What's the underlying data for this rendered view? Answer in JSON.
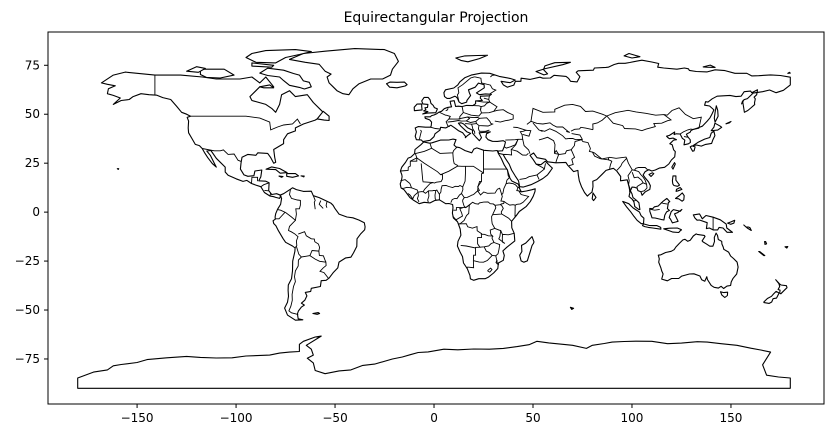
{
  "map": {
    "title": "Equirectangular Projection",
    "projection": "equirectangular",
    "x_range": [
      -195,
      197
    ],
    "y_range": [
      -98,
      92
    ],
    "x_ticks": [
      -150,
      -100,
      -50,
      0,
      50,
      100,
      150
    ],
    "x_tick_labels": [
      "−150",
      "−100",
      "−50",
      "0",
      "50",
      "100",
      "150"
    ],
    "y_ticks": [
      75,
      50,
      25,
      0,
      -25,
      -50,
      -75
    ],
    "y_tick_labels": [
      "75",
      "50",
      "25",
      "0",
      "−25",
      "−50",
      "−75"
    ],
    "grid": false,
    "land_fill": "#ffffff",
    "outline_color": "#000000",
    "frame_color": "#000000",
    "background": "#ffffff"
  }
}
